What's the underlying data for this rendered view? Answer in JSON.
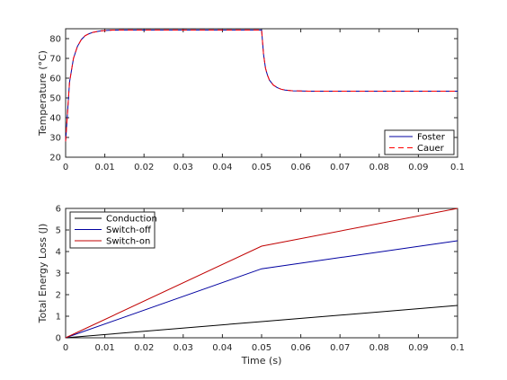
{
  "chart_data": [
    {
      "type": "line",
      "xlabel": "",
      "ylabel": "Temperature (°C)",
      "xlim": [
        0,
        0.1
      ],
      "ylim": [
        20,
        85
      ],
      "xticks": [
        0,
        0.01,
        0.02,
        0.03,
        0.04,
        0.05,
        0.06,
        0.07,
        0.08,
        0.09,
        0.1
      ],
      "xtick_labels": [
        "0",
        "0.01",
        "0.02",
        "0.03",
        "0.04",
        "0.05",
        "0.06",
        "0.07",
        "0.08",
        "0.09",
        "0.1"
      ],
      "yticks": [
        20,
        30,
        40,
        50,
        60,
        70,
        80
      ],
      "ytick_labels": [
        "20",
        "30",
        "40",
        "50",
        "60",
        "70",
        "80"
      ],
      "grid": false,
      "legend_position": "bottom-right",
      "series": [
        {
          "name": "Foster",
          "color": "#0000a0",
          "style": "solid",
          "x": [
            0,
            0.001,
            0.002,
            0.003,
            0.004,
            0.005,
            0.006,
            0.007,
            0.008,
            0.009,
            0.01,
            0.012,
            0.015,
            0.02,
            0.03,
            0.04,
            0.05,
            0.0505,
            0.051,
            0.0515,
            0.052,
            0.053,
            0.054,
            0.055,
            0.056,
            0.058,
            0.06,
            0.062,
            0.065,
            0.07,
            0.08,
            0.09,
            0.1
          ],
          "y": [
            28,
            58,
            70,
            76,
            79.5,
            81.5,
            82.5,
            83.2,
            83.6,
            83.9,
            84.1,
            84.3,
            84.4,
            84.4,
            84.4,
            84.4,
            84.4,
            72,
            65,
            61.5,
            59,
            56.5,
            55.2,
            54.4,
            54.0,
            53.6,
            53.5,
            53.4,
            53.4,
            53.4,
            53.4,
            53.4,
            53.4
          ]
        },
        {
          "name": "Cauer",
          "color": "#ff0000",
          "style": "dashed",
          "x": [
            0,
            0.001,
            0.002,
            0.003,
            0.004,
            0.005,
            0.006,
            0.007,
            0.008,
            0.009,
            0.01,
            0.012,
            0.015,
            0.02,
            0.03,
            0.04,
            0.05,
            0.0505,
            0.051,
            0.0515,
            0.052,
            0.053,
            0.054,
            0.055,
            0.056,
            0.058,
            0.06,
            0.062,
            0.065,
            0.07,
            0.08,
            0.09,
            0.1
          ],
          "y": [
            28,
            58,
            70,
            76,
            79.5,
            81.5,
            82.5,
            83.2,
            83.6,
            83.9,
            84.1,
            84.3,
            84.4,
            84.4,
            84.4,
            84.4,
            84.4,
            72,
            65,
            61.5,
            59,
            56.5,
            55.2,
            54.4,
            54.0,
            53.6,
            53.5,
            53.4,
            53.4,
            53.4,
            53.4,
            53.4,
            53.4
          ]
        }
      ]
    },
    {
      "type": "line",
      "xlabel": "Time (s)",
      "ylabel": "Total Energy Loss (J)",
      "xlim": [
        0,
        0.1
      ],
      "ylim": [
        0,
        6
      ],
      "xticks": [
        0,
        0.01,
        0.02,
        0.03,
        0.04,
        0.05,
        0.06,
        0.07,
        0.08,
        0.09,
        0.1
      ],
      "xtick_labels": [
        "0",
        "0.01",
        "0.02",
        "0.03",
        "0.04",
        "0.05",
        "0.06",
        "0.07",
        "0.08",
        "0.09",
        "0.1"
      ],
      "yticks": [
        0,
        1,
        2,
        3,
        4,
        5,
        6
      ],
      "ytick_labels": [
        "0",
        "1",
        "2",
        "3",
        "4",
        "5",
        "6"
      ],
      "grid": false,
      "legend_position": "top-left",
      "series": [
        {
          "name": "Conduction",
          "color": "#000000",
          "style": "solid",
          "x": [
            0,
            0.05,
            0.1
          ],
          "y": [
            0,
            0.75,
            1.5
          ]
        },
        {
          "name": "Switch-off",
          "color": "#0000a0",
          "style": "solid",
          "x": [
            0,
            0.05,
            0.1
          ],
          "y": [
            0,
            3.2,
            4.5
          ]
        },
        {
          "name": "Switch-on",
          "color": "#c00000",
          "style": "solid",
          "x": [
            0,
            0.05,
            0.1
          ],
          "y": [
            0,
            4.25,
            6.0
          ]
        }
      ]
    }
  ]
}
